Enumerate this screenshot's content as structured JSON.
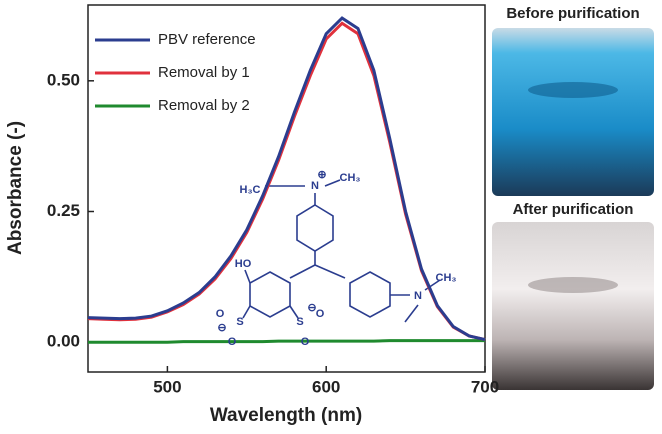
{
  "chart_data": {
    "type": "line",
    "x_label": "Wavelength (nm)",
    "y_label": "Absorbance (-)",
    "x": [
      450,
      460,
      470,
      480,
      490,
      500,
      510,
      520,
      530,
      540,
      550,
      560,
      570,
      580,
      590,
      600,
      610,
      620,
      630,
      640,
      650,
      660,
      670,
      680,
      690,
      700
    ],
    "series": [
      {
        "name": "PBV reference",
        "color": "#2b3d8f",
        "values": [
          0.047,
          0.046,
          0.045,
          0.046,
          0.05,
          0.06,
          0.075,
          0.095,
          0.125,
          0.165,
          0.215,
          0.28,
          0.355,
          0.44,
          0.52,
          0.59,
          0.62,
          0.6,
          0.52,
          0.39,
          0.25,
          0.14,
          0.07,
          0.03,
          0.012,
          0.005
        ]
      },
      {
        "name": "Removal by 1",
        "color": "#e0313c",
        "values": [
          0.045,
          0.044,
          0.043,
          0.044,
          0.048,
          0.058,
          0.072,
          0.092,
          0.121,
          0.16,
          0.21,
          0.274,
          0.348,
          0.432,
          0.51,
          0.58,
          0.61,
          0.59,
          0.51,
          0.383,
          0.245,
          0.137,
          0.068,
          0.029,
          0.012,
          0.005
        ]
      },
      {
        "name": "Removal by 2",
        "color": "#1f8a2e",
        "values": [
          0.0,
          0.0,
          0.0,
          0.0,
          0.0,
          0.0,
          0.001,
          0.001,
          0.001,
          0.001,
          0.001,
          0.001,
          0.002,
          0.002,
          0.002,
          0.002,
          0.002,
          0.002,
          0.002,
          0.003,
          0.003,
          0.003,
          0.003,
          0.003,
          0.003,
          0.003
        ]
      }
    ],
    "xlim": [
      450,
      700
    ],
    "xticks": [
      500,
      600,
      700
    ],
    "ylim": [
      -0.057,
      0.645
    ],
    "yticks": [
      {
        "value": 0,
        "label": "0.00"
      },
      {
        "value": 0.25,
        "label": "0.25"
      },
      {
        "value": 0.5,
        "label": "0.50"
      }
    ],
    "legend": "upper-left",
    "structure_labels": [
      "H₃C",
      "N",
      "⊕",
      "CH₃",
      "HO",
      "S",
      "O",
      "O",
      "⊖",
      "S",
      "O",
      "O",
      "⊖",
      "N",
      "CH₃"
    ],
    "photo_labels": [
      "Before purification",
      "After purification"
    ]
  }
}
